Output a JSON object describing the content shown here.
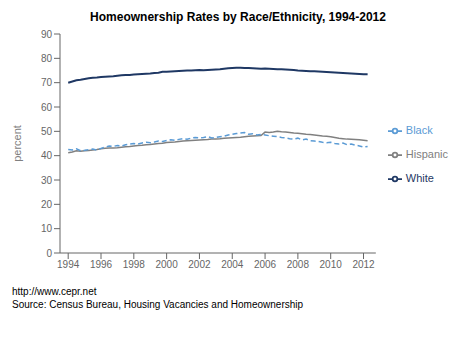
{
  "chart_data": {
    "type": "line",
    "title": "Homeownership Rates by Race/Ethnicity, 1994-2012",
    "ylabel": "percent",
    "annotations": [
      "http://www.cepr.net",
      "Source: Census Bureau, Housing Vacancies and Homeownership"
    ],
    "xlim": [
      1993.5,
      2012.75
    ],
    "xticks": [
      1994,
      1996,
      1998,
      2000,
      2002,
      2004,
      2006,
      2008,
      2010,
      2012
    ],
    "ylim": [
      0,
      90
    ],
    "yticks": [
      0,
      10,
      20,
      30,
      40,
      50,
      60,
      70,
      80,
      90
    ],
    "grid": false,
    "legend": "right",
    "x": [
      1994.0,
      1994.25,
      1994.5,
      1994.75,
      1995.0,
      1995.25,
      1995.5,
      1995.75,
      1996.0,
      1996.25,
      1996.5,
      1996.75,
      1997.0,
      1997.25,
      1997.5,
      1997.75,
      1998.0,
      1998.25,
      1998.5,
      1998.75,
      1999.0,
      1999.25,
      1999.5,
      1999.75,
      2000.0,
      2000.25,
      2000.5,
      2000.75,
      2001.0,
      2001.25,
      2001.5,
      2001.75,
      2002.0,
      2002.25,
      2002.5,
      2002.75,
      2003.0,
      2003.25,
      2003.5,
      2003.75,
      2004.0,
      2004.25,
      2004.5,
      2004.75,
      2005.0,
      2005.25,
      2005.5,
      2005.75,
      2006.0,
      2006.25,
      2006.5,
      2006.75,
      2007.0,
      2007.25,
      2007.5,
      2007.75,
      2008.0,
      2008.25,
      2008.5,
      2008.75,
      2009.0,
      2009.25,
      2009.5,
      2009.75,
      2010.0,
      2010.25,
      2010.5,
      2010.75,
      2011.0,
      2011.25,
      2011.5,
      2011.75,
      2012.0,
      2012.25
    ],
    "series": [
      {
        "name": "White",
        "color": "#1f3864",
        "line_style": "solid",
        "values": [
          70.0,
          70.5,
          71.0,
          71.2,
          71.5,
          71.8,
          72.0,
          72.1,
          72.3,
          72.4,
          72.5,
          72.6,
          72.8,
          73.0,
          73.1,
          73.2,
          73.4,
          73.5,
          73.6,
          73.7,
          73.8,
          74.0,
          74.1,
          74.5,
          74.5,
          74.6,
          74.7,
          74.8,
          74.9,
          75.0,
          75.0,
          75.1,
          75.2,
          75.1,
          75.2,
          75.3,
          75.4,
          75.5,
          75.7,
          75.9,
          76.0,
          76.1,
          76.1,
          76.0,
          76.0,
          75.9,
          75.8,
          75.7,
          75.8,
          75.7,
          75.6,
          75.5,
          75.5,
          75.4,
          75.3,
          75.2,
          75.0,
          74.9,
          74.8,
          74.7,
          74.7,
          74.6,
          74.5,
          74.4,
          74.3,
          74.2,
          74.1,
          74.0,
          73.9,
          73.8,
          73.7,
          73.6,
          73.5,
          73.5
        ]
      },
      {
        "name": "Hispanic",
        "color": "#808080",
        "line_style": "solid",
        "values": [
          41.2,
          41.5,
          42.0,
          41.8,
          42.0,
          42.1,
          42.3,
          42.5,
          42.8,
          43.0,
          43.1,
          43.2,
          43.3,
          43.5,
          43.7,
          43.8,
          44.0,
          44.2,
          44.3,
          44.5,
          44.6,
          44.8,
          45.0,
          45.1,
          45.4,
          45.5,
          45.6,
          45.8,
          46.0,
          46.1,
          46.2,
          46.3,
          46.4,
          46.5,
          46.6,
          46.8,
          46.9,
          47.0,
          47.2,
          47.3,
          47.4,
          47.5,
          47.6,
          47.8,
          48.0,
          48.1,
          48.2,
          48.3,
          49.7,
          49.5,
          49.7,
          50.0,
          49.8,
          49.7,
          49.5,
          49.3,
          49.2,
          49.0,
          48.8,
          48.7,
          48.5,
          48.3,
          48.1,
          48.0,
          47.8,
          47.5,
          47.2,
          47.0,
          46.8,
          46.7,
          46.6,
          46.5,
          46.3,
          46.1
        ]
      },
      {
        "name": "Black",
        "color": "#5b9bd5",
        "line_style": "dashed",
        "values": [
          42.5,
          42.3,
          42.8,
          42.0,
          42.2,
          42.5,
          42.7,
          42.3,
          43.0,
          43.5,
          44.0,
          43.8,
          44.2,
          44.0,
          44.5,
          44.8,
          45.0,
          44.8,
          45.2,
          45.5,
          45.3,
          45.6,
          46.0,
          45.8,
          46.2,
          46.5,
          46.3,
          46.7,
          47.0,
          46.8,
          47.2,
          47.5,
          47.3,
          47.5,
          47.8,
          47.3,
          47.5,
          47.8,
          48.0,
          48.5,
          48.8,
          49.1,
          49.3,
          49.5,
          48.8,
          49.0,
          48.5,
          48.7,
          48.5,
          48.2,
          48.0,
          47.8,
          47.5,
          47.3,
          47.0,
          46.8,
          47.2,
          46.5,
          46.8,
          46.2,
          46.0,
          45.8,
          45.5,
          45.3,
          45.5,
          45.0,
          44.8,
          45.2,
          44.5,
          44.8,
          44.3,
          44.0,
          43.5,
          43.8
        ]
      }
    ]
  }
}
